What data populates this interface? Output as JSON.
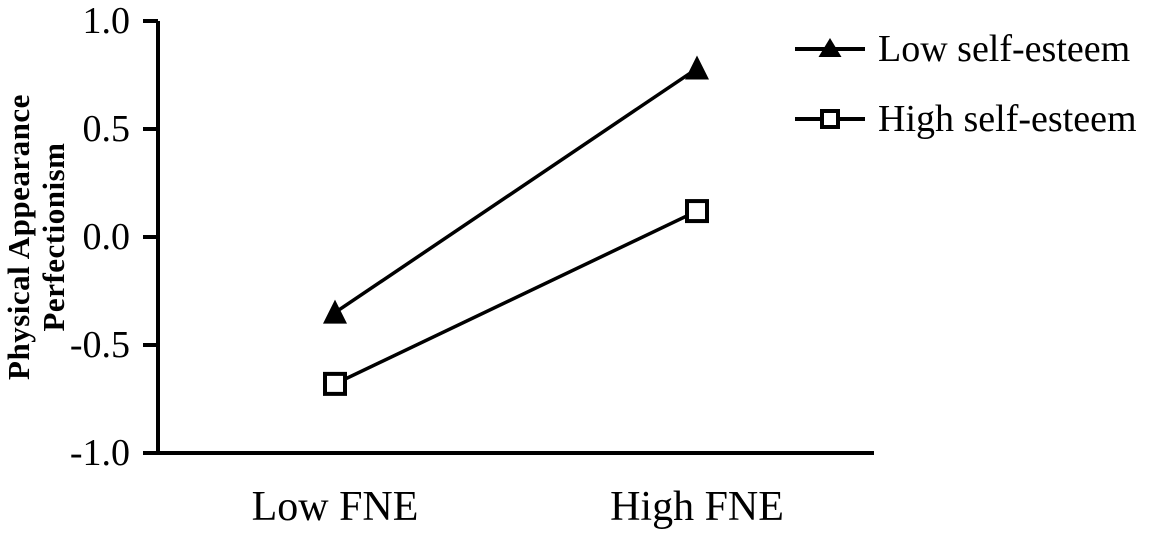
{
  "chart_data": {
    "type": "line",
    "title": "",
    "categories": [
      "Low FNE",
      "High FNE"
    ],
    "series": [
      {
        "name": "Low self-esteem",
        "marker": "filled-triangle",
        "values": [
          -0.35,
          0.78
        ]
      },
      {
        "name": "High self-esteem",
        "marker": "open-square",
        "values": [
          -0.68,
          0.12
        ]
      }
    ],
    "ylabel": "Physical Appearance Perfectionism",
    "ylabel_lines": [
      "Physical Appearance",
      "Perfectionism"
    ],
    "ylim": [
      -1.0,
      1.0
    ],
    "yticks": [
      1.0,
      0.5,
      0.0,
      -0.5,
      -1.0
    ],
    "ytick_labels": [
      "1.0",
      "0.5",
      "0.0",
      "-0.5",
      "-1.0"
    ],
    "grid": false,
    "legend_position": "top-right",
    "colors": {
      "line": "#000000",
      "text": "#000000",
      "background": "#ffffff"
    }
  }
}
